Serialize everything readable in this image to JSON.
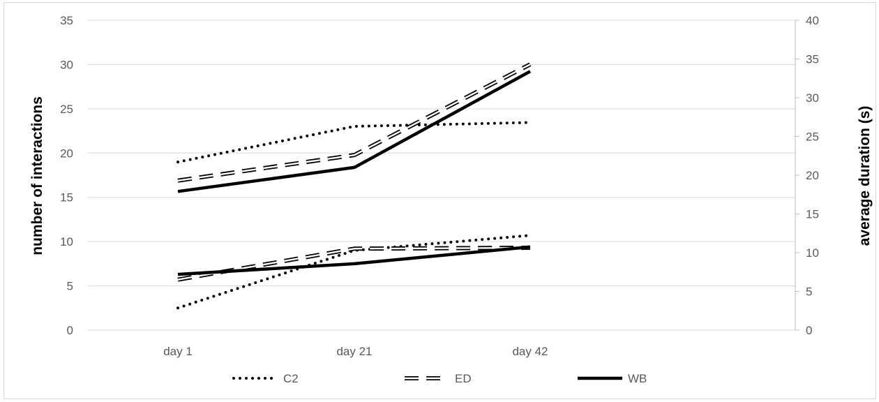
{
  "chart_data": {
    "type": "line",
    "categories": [
      "day 1",
      "day 21",
      "day 42"
    ],
    "y_left": {
      "label": "number of interactions",
      "ticks": [
        "0",
        "5",
        "10",
        "15",
        "20",
        "25",
        "30",
        "35"
      ],
      "range": [
        0,
        35
      ]
    },
    "y_right": {
      "label": "average duration (s)",
      "ticks": [
        "0",
        "5",
        "10",
        "15",
        "20",
        "25",
        "30",
        "35",
        "40"
      ],
      "range": [
        0,
        40
      ]
    },
    "series": [
      {
        "name": "C2",
        "style": "dotted",
        "axis": "left",
        "group": "interactions",
        "values": [
          2.5,
          9.0,
          10.7
        ]
      },
      {
        "name": "ED",
        "style": "double-dashed",
        "axis": "left",
        "group": "interactions",
        "values": [
          5.7,
          9.2,
          9.3
        ]
      },
      {
        "name": "WB",
        "style": "solid",
        "axis": "left",
        "group": "interactions",
        "values": [
          6.3,
          7.5,
          9.4
        ]
      },
      {
        "name": "C2",
        "style": "dotted",
        "axis": "right",
        "group": "duration",
        "values": [
          21.7,
          26.3,
          26.8
        ]
      },
      {
        "name": "ED",
        "style": "double-dashed",
        "axis": "right",
        "group": "duration",
        "values": [
          19.3,
          22.6,
          34.3
        ]
      },
      {
        "name": "WB",
        "style": "solid",
        "axis": "right",
        "group": "duration",
        "values": [
          17.9,
          21.0,
          33.4
        ]
      }
    ],
    "legend": {
      "position": "bottom",
      "entries": [
        "C2",
        "ED",
        "WB"
      ]
    },
    "grid": true,
    "colors": {
      "line": "#000000",
      "grid": "#d9d9d9",
      "tick_text": "#595959",
      "frame": "#d9d9d9"
    }
  }
}
